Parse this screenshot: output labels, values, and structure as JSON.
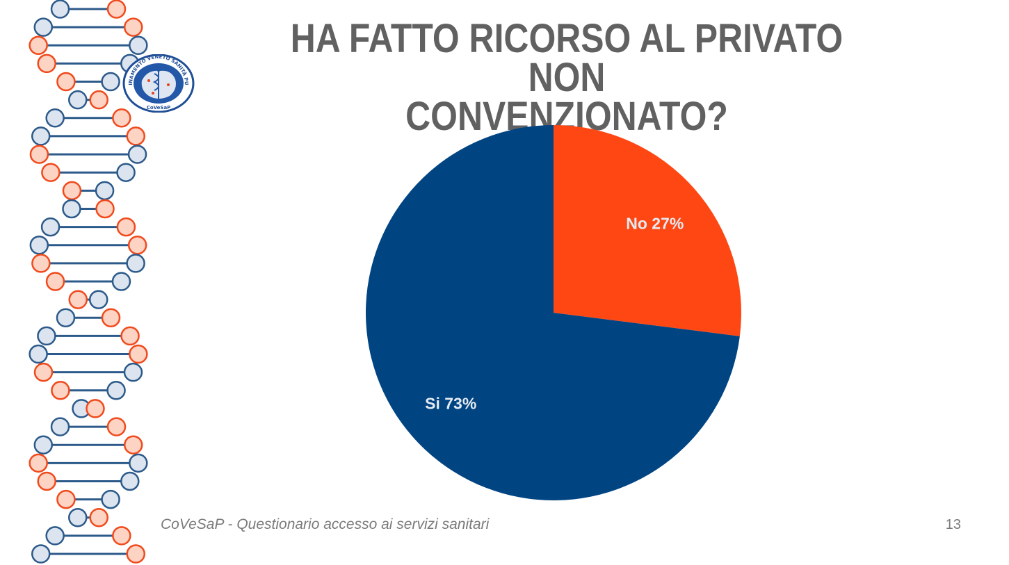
{
  "slide": {
    "title_line1": "HA FATTO RICORSO AL PRIVATO NON",
    "title_line2": "CONVENZIONATO?",
    "footer_text": "CoVeSaP - Questionario accesso ai servizi sanitari",
    "page_number": "13"
  },
  "logo": {
    "ring_text": "COORDINAMENTO VENETO SANITÀ PUBBLICA",
    "bottom_text": "CoVeSaP"
  },
  "colors": {
    "blue": "#004482",
    "orange": "#ff4713",
    "dna_blue": "#2c5a8a",
    "dna_blue_fill": "#dbe4ef",
    "dna_orange": "#f04a1c",
    "dna_orange_fill": "#fdd3c4"
  },
  "chart_data": {
    "type": "pie",
    "title": "HA FATTO RICORSO AL PRIVATO NON CONVENZIONATO?",
    "start_angle_deg": 0,
    "direction": "clockwise",
    "legend": "none",
    "slices": [
      {
        "label": "No",
        "value": 27,
        "display": "No 27%",
        "color": "#ff4713"
      },
      {
        "label": "Si",
        "value": 73,
        "display": "Si 73%",
        "color": "#004482"
      }
    ]
  }
}
